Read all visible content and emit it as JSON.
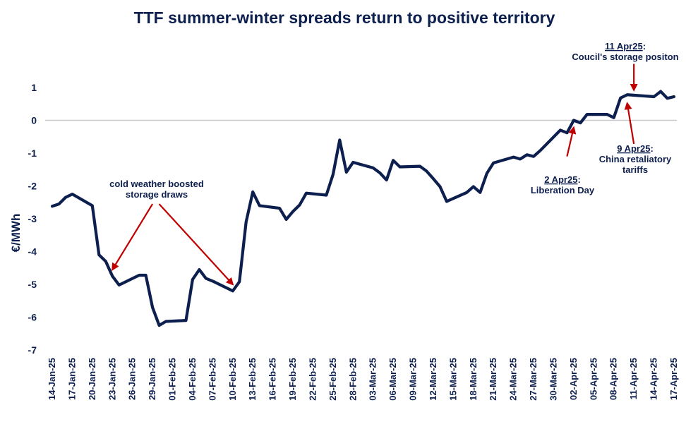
{
  "chart_data": {
    "type": "line",
    "title": "TTF summer-winter spreads return to positive territory",
    "xlabel": "",
    "ylabel": "€/MWh",
    "ylim": [
      -7,
      1
    ],
    "yticks": [
      -7,
      -6,
      -5,
      -4,
      -3,
      -2,
      -1,
      0,
      1
    ],
    "grid": false,
    "zero_line": true,
    "x_start": "2025-01-14",
    "x_end": "2025-04-17",
    "xtick_labels": [
      "14-Jan-25",
      "17-Jan-25",
      "20-Jan-25",
      "23-Jan-25",
      "26-Jan-25",
      "29-Jan-25",
      "01-Feb-25",
      "04-Feb-25",
      "07-Feb-25",
      "10-Feb-25",
      "13-Feb-25",
      "16-Feb-25",
      "19-Feb-25",
      "22-Feb-25",
      "25-Feb-25",
      "28-Feb-25",
      "03-Mar-25",
      "06-Mar-25",
      "09-Mar-25",
      "12-Mar-25",
      "15-Mar-25",
      "18-Mar-25",
      "21-Mar-25",
      "24-Mar-25",
      "27-Mar-25",
      "30-Mar-25",
      "02-Apr-25",
      "05-Apr-25",
      "08-Apr-25",
      "11-Apr-25",
      "14-Apr-25",
      "17-Apr-25"
    ],
    "line_color": "#0d1f4e",
    "annotation_color": "#c00000",
    "series": [
      {
        "name": "TTF summer-winter spread",
        "points": [
          [
            "2025-01-14",
            -2.62
          ],
          [
            "2025-01-15",
            -2.55
          ],
          [
            "2025-01-16",
            -2.35
          ],
          [
            "2025-01-17",
            -2.25
          ],
          [
            "2025-01-20",
            -2.6
          ],
          [
            "2025-01-21",
            -4.1
          ],
          [
            "2025-01-22",
            -4.3
          ],
          [
            "2025-01-23",
            -4.75
          ],
          [
            "2025-01-24",
            -5.02
          ],
          [
            "2025-01-27",
            -4.72
          ],
          [
            "2025-01-28",
            -4.72
          ],
          [
            "2025-01-29",
            -5.7
          ],
          [
            "2025-01-30",
            -6.25
          ],
          [
            "2025-01-31",
            -6.13
          ],
          [
            "2025-02-03",
            -6.1
          ],
          [
            "2025-02-04",
            -4.85
          ],
          [
            "2025-02-05",
            -4.55
          ],
          [
            "2025-02-06",
            -4.82
          ],
          [
            "2025-02-07",
            -4.9
          ],
          [
            "2025-02-10",
            -5.2
          ],
          [
            "2025-02-11",
            -4.92
          ],
          [
            "2025-02-12",
            -3.1
          ],
          [
            "2025-02-13",
            -2.18
          ],
          [
            "2025-02-14",
            -2.6
          ],
          [
            "2025-02-17",
            -2.68
          ],
          [
            "2025-02-18",
            -3.02
          ],
          [
            "2025-02-19",
            -2.78
          ],
          [
            "2025-02-20",
            -2.58
          ],
          [
            "2025-02-21",
            -2.22
          ],
          [
            "2025-02-24",
            -2.28
          ],
          [
            "2025-02-25",
            -1.65
          ],
          [
            "2025-02-26",
            -0.6
          ],
          [
            "2025-02-27",
            -1.58
          ],
          [
            "2025-02-28",
            -1.28
          ],
          [
            "2025-03-03",
            -1.45
          ],
          [
            "2025-03-04",
            -1.6
          ],
          [
            "2025-03-05",
            -1.82
          ],
          [
            "2025-03-06",
            -1.22
          ],
          [
            "2025-03-07",
            -1.42
          ],
          [
            "2025-03-10",
            -1.4
          ],
          [
            "2025-03-11",
            -1.55
          ],
          [
            "2025-03-12",
            -1.78
          ],
          [
            "2025-03-13",
            -2.02
          ],
          [
            "2025-03-14",
            -2.47
          ],
          [
            "2025-03-17",
            -2.2
          ],
          [
            "2025-03-18",
            -2.02
          ],
          [
            "2025-03-19",
            -2.2
          ],
          [
            "2025-03-20",
            -1.62
          ],
          [
            "2025-03-21",
            -1.3
          ],
          [
            "2025-03-24",
            -1.12
          ],
          [
            "2025-03-25",
            -1.18
          ],
          [
            "2025-03-26",
            -1.05
          ],
          [
            "2025-03-27",
            -1.1
          ],
          [
            "2025-03-28",
            -0.92
          ],
          [
            "2025-03-31",
            -0.3
          ],
          [
            "2025-04-01",
            -0.38
          ],
          [
            "2025-04-02",
            0.0
          ],
          [
            "2025-04-03",
            -0.08
          ],
          [
            "2025-04-04",
            0.18
          ],
          [
            "2025-04-07",
            0.18
          ],
          [
            "2025-04-08",
            0.08
          ],
          [
            "2025-04-09",
            0.68
          ],
          [
            "2025-04-10",
            0.78
          ],
          [
            "2025-04-14",
            0.72
          ],
          [
            "2025-04-15",
            0.88
          ],
          [
            "2025-04-16",
            0.67
          ],
          [
            "2025-04-17",
            0.72
          ]
        ]
      }
    ],
    "annotations": [
      {
        "id": "cold",
        "lines": [
          "cold weather boosted",
          "storage draws"
        ],
        "date_label": "",
        "arrows": [
          {
            "from": [
              "2025-01-29",
              -2.55
            ],
            "to": [
              "2025-01-23",
              -4.55
            ]
          },
          {
            "from": [
              "2025-01-30",
              -2.55
            ],
            "to": [
              "2025-02-10",
              -5.0
            ]
          }
        ]
      },
      {
        "id": "liberation",
        "date_label": "2 Apr25",
        "date_suffix": ":",
        "lines": [
          "Liberation Day"
        ],
        "arrows": [
          {
            "from": [
              "2025-04-01",
              -1.1
            ],
            "to": [
              "2025-04-02",
              -0.22
            ]
          }
        ]
      },
      {
        "id": "china",
        "date_label": "9 Apr25",
        "date_suffix": ":",
        "lines": [
          "China retaliatory",
          "tariffs"
        ],
        "arrows": [
          {
            "from": [
              "2025-04-11",
              -0.72
            ],
            "to": [
              "2025-04-10",
              0.52
            ]
          }
        ]
      },
      {
        "id": "council",
        "date_label": "11 Apr25",
        "date_suffix": ":",
        "lines": [
          "Coucil's storage positon"
        ],
        "arrows": [
          {
            "from": [
              "2025-04-11",
              1.72
            ],
            "to": [
              "2025-04-11",
              0.92
            ]
          }
        ]
      }
    ]
  }
}
